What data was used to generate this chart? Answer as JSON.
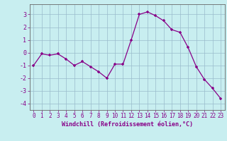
{
  "x": [
    0,
    1,
    2,
    3,
    4,
    5,
    6,
    7,
    8,
    9,
    10,
    11,
    12,
    13,
    14,
    15,
    16,
    17,
    18,
    19,
    20,
    21,
    22,
    23
  ],
  "y": [
    -1,
    -0.1,
    -0.2,
    -0.1,
    -0.5,
    -1.0,
    -0.7,
    -1.1,
    -1.5,
    -2.0,
    -0.9,
    -0.9,
    1.0,
    3.0,
    3.2,
    2.9,
    2.5,
    1.8,
    1.6,
    0.4,
    -1.1,
    -2.1,
    -2.8,
    -3.6
  ],
  "xlabel": "Windchill (Refroidissement éolien,°C)",
  "xlim": [
    -0.5,
    23.5
  ],
  "ylim": [
    -4.5,
    3.8
  ],
  "yticks": [
    -4,
    -3,
    -2,
    -1,
    0,
    1,
    2,
    3
  ],
  "xticks": [
    0,
    1,
    2,
    3,
    4,
    5,
    6,
    7,
    8,
    9,
    10,
    11,
    12,
    13,
    14,
    15,
    16,
    17,
    18,
    19,
    20,
    21,
    22,
    23
  ],
  "line_color": "#880088",
  "marker": "+",
  "bg_color": "#c8eef0",
  "grid_color": "#99bbcc",
  "font_color": "#880088",
  "tick_fontsize": 5.5,
  "xlabel_fontsize": 6.0
}
